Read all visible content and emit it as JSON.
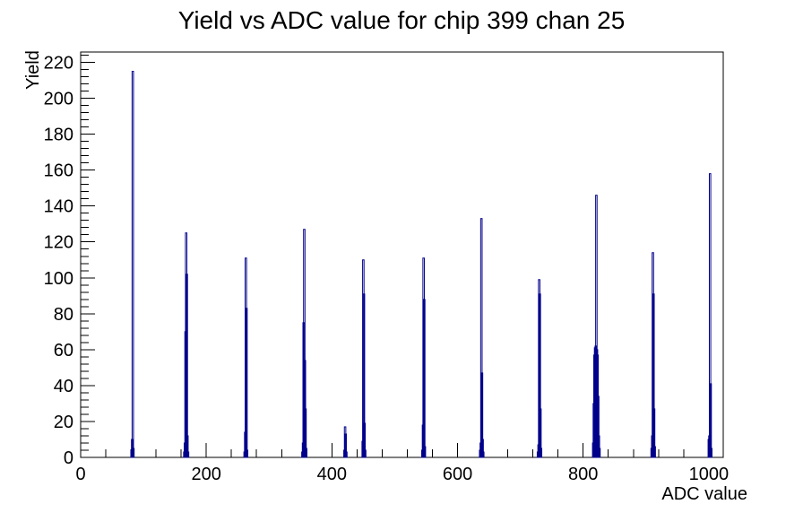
{
  "window": {
    "background": "#ffffff"
  },
  "chart_data": {
    "type": "bar",
    "title": "Yield vs ADC value for chip 399 chan 25",
    "xlabel": "ADC value",
    "ylabel": "Yield",
    "xlim": [
      0,
      1023
    ],
    "ylim": [
      0,
      225.75
    ],
    "grid": false,
    "legend": "none",
    "line_color": "#00008b",
    "frame_color": "#000000",
    "x_major_ticks": [
      0,
      200,
      400,
      600,
      800,
      1000
    ],
    "x_tick_labels": [
      "0",
      "200",
      "400",
      "600",
      "800",
      "1000"
    ],
    "x_minor_step": 40,
    "y_major_ticks": [
      0,
      20,
      40,
      60,
      80,
      100,
      120,
      140,
      160,
      180,
      200,
      220
    ],
    "y_tick_labels": [
      "0",
      "20",
      "40",
      "60",
      "80",
      "100",
      "120",
      "140",
      "160",
      "180",
      "200",
      "220"
    ],
    "y_minor_step": 4,
    "bins": [
      [
        81,
        4
      ],
      [
        82,
        10
      ],
      [
        83,
        215
      ],
      [
        84,
        5
      ],
      [
        165,
        3
      ],
      [
        166,
        8
      ],
      [
        167,
        70
      ],
      [
        168,
        125
      ],
      [
        169,
        102
      ],
      [
        170,
        12
      ],
      [
        171,
        3
      ],
      [
        261,
        3
      ],
      [
        262,
        14
      ],
      [
        263,
        111
      ],
      [
        264,
        83
      ],
      [
        265,
        4
      ],
      [
        353,
        3
      ],
      [
        354,
        8
      ],
      [
        355,
        75
      ],
      [
        356,
        127
      ],
      [
        357,
        54
      ],
      [
        358,
        27
      ],
      [
        359,
        5
      ],
      [
        420,
        4
      ],
      [
        421,
        17
      ],
      [
        422,
        13
      ],
      [
        423,
        3
      ],
      [
        449,
        9
      ],
      [
        450,
        110
      ],
      [
        451,
        91
      ],
      [
        452,
        19
      ],
      [
        453,
        4
      ],
      [
        544,
        4
      ],
      [
        545,
        18
      ],
      [
        546,
        111
      ],
      [
        547,
        88
      ],
      [
        548,
        6
      ],
      [
        636,
        4
      ],
      [
        637,
        8
      ],
      [
        638,
        133
      ],
      [
        639,
        47
      ],
      [
        640,
        10
      ],
      [
        641,
        3
      ],
      [
        728,
        3
      ],
      [
        729,
        7
      ],
      [
        730,
        99
      ],
      [
        731,
        91
      ],
      [
        732,
        27
      ],
      [
        733,
        5
      ],
      [
        816,
        8
      ],
      [
        817,
        30
      ],
      [
        818,
        57
      ],
      [
        819,
        61
      ],
      [
        820,
        62
      ],
      [
        821,
        146
      ],
      [
        822,
        60
      ],
      [
        823,
        57
      ],
      [
        824,
        34
      ],
      [
        825,
        12
      ],
      [
        826,
        5
      ],
      [
        909,
        5
      ],
      [
        910,
        12
      ],
      [
        911,
        114
      ],
      [
        912,
        91
      ],
      [
        913,
        27
      ],
      [
        914,
        6
      ],
      [
        1000,
        10
      ],
      [
        1001,
        12
      ],
      [
        1002,
        158
      ],
      [
        1003,
        41
      ],
      [
        1004,
        5
      ]
    ]
  }
}
